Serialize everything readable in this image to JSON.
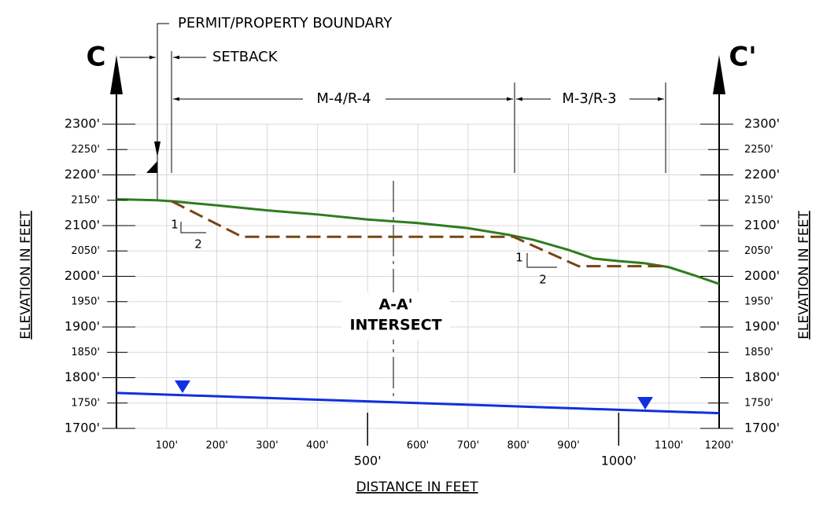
{
  "chart_data": {
    "type": "line",
    "xlabel": "DISTANCE IN FEET",
    "ylabel": "ELEVATION IN FEET",
    "xlim": [
      0,
      1200
    ],
    "ylim": [
      1700,
      2300
    ],
    "xticks": [
      {
        "value": 100,
        "label": "100'"
      },
      {
        "value": 200,
        "label": "200'"
      },
      {
        "value": 300,
        "label": "300'"
      },
      {
        "value": 400,
        "label": "400'"
      },
      {
        "value": 500,
        "label": "500'"
      },
      {
        "value": 600,
        "label": "600'"
      },
      {
        "value": 700,
        "label": "700'"
      },
      {
        "value": 800,
        "label": "800'"
      },
      {
        "value": 900,
        "label": "900'"
      },
      {
        "value": 1000,
        "label": "1000'"
      },
      {
        "value": 1100,
        "label": "1100'"
      },
      {
        "value": 1200,
        "label": "1200'"
      }
    ],
    "yticks": [
      {
        "value": 1700,
        "label": "1700'"
      },
      {
        "value": 1750,
        "label": "1750'"
      },
      {
        "value": 1800,
        "label": "1800'"
      },
      {
        "value": 1850,
        "label": "1850'"
      },
      {
        "value": 1900,
        "label": "1900'"
      },
      {
        "value": 1950,
        "label": "1950'"
      },
      {
        "value": 2000,
        "label": "2000'"
      },
      {
        "value": 2050,
        "label": "2050'"
      },
      {
        "value": 2100,
        "label": "2100'"
      },
      {
        "value": 2150,
        "label": "2150'"
      },
      {
        "value": 2200,
        "label": "2200'"
      },
      {
        "value": 2250,
        "label": "2250'"
      },
      {
        "value": 2300,
        "label": "2300'"
      }
    ],
    "grid": true,
    "series": [
      {
        "color": "#2e7d1e",
        "style": "solid",
        "x": [
          0,
          80,
          110,
          200,
          300,
          400,
          500,
          600,
          700,
          780,
          830,
          900,
          950,
          1000,
          1050,
          1100,
          1150,
          1200
        ],
        "values": [
          2152,
          2150,
          2148,
          2140,
          2130,
          2122,
          2112,
          2105,
          2095,
          2082,
          2072,
          2052,
          2035,
          2030,
          2026,
          2018,
          2002,
          1985
        ]
      },
      {
        "color": "#7a4413",
        "style": "dashed",
        "x": [
          110,
          250,
          790,
          920,
          1095
        ],
        "values": [
          2148,
          2078,
          2078,
          2020,
          2020
        ]
      },
      {
        "color": "#1030e0",
        "style": "solid",
        "x": [
          0,
          1200
        ],
        "values": [
          1770,
          1730
        ]
      }
    ],
    "annotations": {
      "c": "C",
      "c_prime": "C'",
      "boundary": "PERMIT/PROPERTY BOUNDARY",
      "setback": "SETBACK",
      "zone_1": "M-4/R-4",
      "zone_2": "M-3/R-3",
      "intersect": [
        "A-A'",
        "INTERSECT"
      ],
      "slope_1": [
        "1",
        "2"
      ],
      "slope_2": [
        "1",
        "2"
      ]
    }
  }
}
